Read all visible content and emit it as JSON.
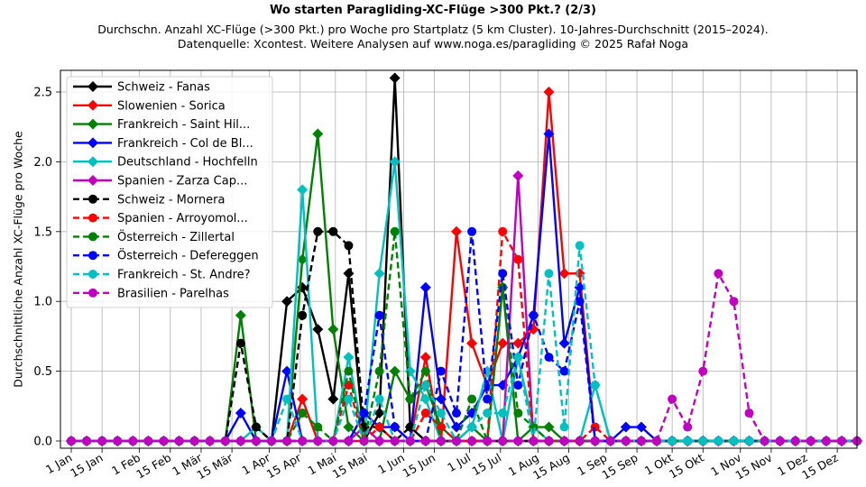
{
  "chart_data": {
    "type": "line",
    "title": "Wo starten Paragliding-XC-Flüge >300 Pkt.? (2/3)",
    "subtitle_lines": [
      "Durchschn. Anzahl XC-Flüge (>300 Pkt.) pro Woche pro Startplatz (5 km Cluster). 10-Jahres-Durchschnitt (2015–2024).",
      "Datenquelle: Xcontest. Weitere Analysen auf www.noga.es/paragliding © 2025 Rafał Noga"
    ],
    "xlabel": "",
    "ylabel": "Durchschnittliche Anzahl XC-Flüge pro Woche",
    "ylim": [
      -0.06,
      2.6
    ],
    "yticks": [
      0.0,
      0.5,
      1.0,
      1.5,
      2.0,
      2.5
    ],
    "ytick_labels": [
      "0.0",
      "0.5",
      "1.0",
      "1.5",
      "2.0",
      "2.5"
    ],
    "xtick_labels": [
      "1 Jan",
      "15 Jan",
      "1 Feb",
      "15 Feb",
      "1 Mär",
      "15 Mär",
      "1 Apr",
      "15 Apr",
      "1 Mai",
      "15 Mai",
      "1 Jun",
      "15 Jun",
      "1 Jul",
      "15 Jul",
      "1 Aug",
      "15 Aug",
      "1 Sep",
      "15 Sep",
      "1 Okt",
      "15 Okt",
      "1 Nov",
      "15 Nov",
      "1 Dez",
      "15 Dez"
    ],
    "xtick_days": [
      0,
      14,
      31,
      45,
      59,
      73,
      90,
      104,
      120,
      134,
      151,
      165,
      181,
      195,
      212,
      226,
      243,
      257,
      273,
      287,
      304,
      318,
      334,
      348
    ],
    "x_unit": "week index (0–51), week start day = index*7",
    "grid": true,
    "legend_position": "upper left",
    "weeks": 52,
    "series": [
      {
        "name": "Schweiz - Fanas",
        "color": "#000000",
        "style": "solid",
        "marker": "diamond",
        "values": {
          "14": 1.0,
          "15": 1.1,
          "16": 0.8,
          "17": 0.3,
          "18": 1.2,
          "20": 0.2,
          "21": 2.6,
          "22": 0.1
        }
      },
      {
        "name": "Slowenien - Sorica",
        "color": "#ff0000",
        "style": "solid",
        "marker": "diamond",
        "values": {
          "15": 0.3,
          "23": 0.6,
          "25": 1.5,
          "26": 0.7,
          "27": 0.4,
          "28": 0.7,
          "29": 0.7,
          "30": 0.8,
          "31": 2.5,
          "32": 1.2,
          "33": 1.2
        }
      },
      {
        "name": "Frankreich - Saint Hil...",
        "color": "#008000",
        "style": "solid",
        "marker": "diamond",
        "values": {
          "11": 0.9,
          "15": 1.3,
          "16": 2.2,
          "17": 0.8,
          "18": 0.1,
          "21": 0.5,
          "22": 0.3,
          "23": 0.4,
          "24": 0.1,
          "26": 0.1,
          "28": 1.1,
          "30": 0.1,
          "31": 0.1
        }
      },
      {
        "name": "Frankreich - Col de Bl...",
        "color": "#0000ff",
        "style": "solid",
        "marker": "diamond",
        "values": {
          "11": 0.2,
          "14": 0.5,
          "19": 0.2,
          "20": 0.1,
          "21": 0.1,
          "23": 1.1,
          "24": 0.3,
          "25": 0.1,
          "26": 0.2,
          "27": 0.4,
          "28": 0.4,
          "29": 0.6,
          "30": 0.9,
          "31": 2.2,
          "32": 0.7,
          "33": 1.1,
          "36": 0.1,
          "37": 0.1
        }
      },
      {
        "name": "Deutschland - Hochfelln",
        "color": "#00bfbf",
        "style": "solid",
        "marker": "diamond",
        "values": {
          "12": 0.1,
          "15": 1.8,
          "18": 0.6,
          "20": 1.2,
          "21": 2.0,
          "22": 0.5,
          "23": 0.3,
          "26": 0.1,
          "27": 0.5,
          "29": 0.6,
          "30": 0.1,
          "34": 0.4
        }
      },
      {
        "name": "Spanien - Zarza Cap...",
        "color": "#bf00bf",
        "style": "solid",
        "marker": "diamond",
        "values": {
          "19": 0.1,
          "29": 1.9
        }
      },
      {
        "name": "Schweiz - Mornera",
        "color": "#000000",
        "style": "dashed",
        "marker": "circle",
        "values": {
          "11": 0.7,
          "12": 0.1,
          "15": 0.9,
          "16": 1.5,
          "17": 1.5,
          "18": 1.4,
          "19": 0.1,
          "20": 0.1,
          "22": 0.1
        }
      },
      {
        "name": "Spanien - Arroyomol...",
        "color": "#ff0000",
        "style": "dashed",
        "marker": "circle",
        "values": {
          "18": 0.4,
          "20": 0.1,
          "23": 0.2,
          "24": 0.1,
          "28": 1.5,
          "29": 1.3,
          "34": 0.1
        }
      },
      {
        "name": "Österreich - Zillertal",
        "color": "#008000",
        "style": "dashed",
        "marker": "circle",
        "values": {
          "15": 0.2,
          "16": 0.1,
          "18": 0.5,
          "20": 0.5,
          "21": 1.5,
          "22": 0.3,
          "23": 0.5,
          "26": 0.3,
          "28": 1.1,
          "29": 0.2,
          "30": 0.1
        }
      },
      {
        "name": "Österreich - Defereggen",
        "color": "#0000ff",
        "style": "dashed",
        "marker": "circle",
        "values": {
          "19": 0.2,
          "20": 0.9,
          "21": 0.1,
          "24": 0.5,
          "25": 0.2,
          "26": 1.5,
          "27": 0.3,
          "28": 1.2,
          "29": 0.4,
          "30": 0.9,
          "31": 0.6,
          "32": 0.5,
          "33": 1.0
        }
      },
      {
        "name": "Frankreich - St. Andre?",
        "color": "#00bfbf",
        "style": "dashed",
        "marker": "circle",
        "values": {
          "14": 0.3,
          "18": 0.3,
          "20": 0.3,
          "23": 0.4,
          "24": 0.2,
          "26": 0.1,
          "27": 0.2,
          "28": 0.2,
          "29": 0.6,
          "31": 1.2,
          "32": 0.1,
          "33": 1.4,
          "34": 0.4
        }
      },
      {
        "name": "Brasilien - Parelhas",
        "color": "#bf00bf",
        "style": "dashed",
        "marker": "circle",
        "values": {
          "39": 0.3,
          "40": 0.1,
          "41": 0.5,
          "42": 1.2,
          "43": 1.0,
          "44": 0.2
        }
      }
    ]
  }
}
